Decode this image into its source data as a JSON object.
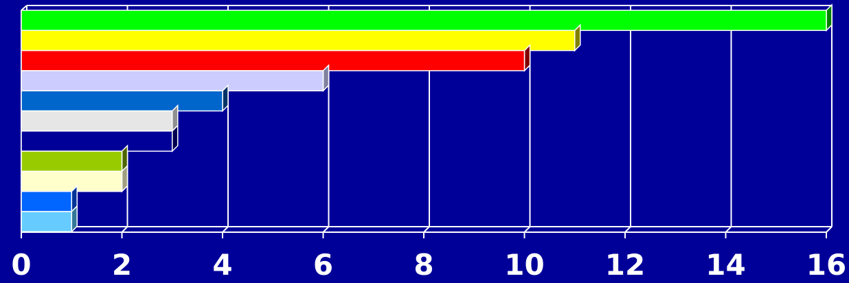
{
  "chart_data": {
    "type": "bar",
    "orientation": "horizontal",
    "style": "3d",
    "title": "",
    "xlabel": "",
    "ylabel": "",
    "xlim": [
      0,
      16
    ],
    "xticks": [
      "0",
      "2",
      "4",
      "6",
      "8",
      "10",
      "12",
      "14",
      "16"
    ],
    "grid": true,
    "legend": "none",
    "values": [
      16,
      11,
      10,
      6,
      4,
      3,
      3,
      2,
      2,
      1,
      1
    ],
    "colors": [
      "#00ff00",
      "#ffff00",
      "#ff0000",
      "#ccccff",
      "#0066cc",
      "#e6e6e6",
      "#000099",
      "#99cc00",
      "#ffffcc",
      "#0066ff",
      "#66ccff"
    ],
    "side_colors": [
      "#008000",
      "#808000",
      "#800000",
      "#8080a0",
      "#003366",
      "#909090",
      "#000050",
      "#4d6600",
      "#a0a080",
      "#003399",
      "#337799"
    ],
    "background": "#000099"
  }
}
